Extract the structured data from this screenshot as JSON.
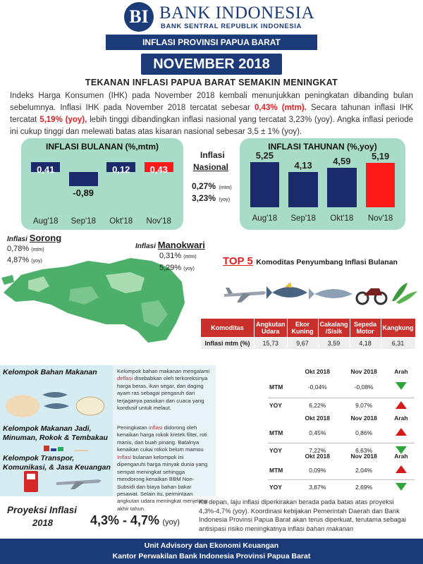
{
  "header": {
    "logo_letter": "BI",
    "bank_name": "BANK INDONESIA",
    "bank_subtitle": "BANK SENTRAL REPUBLIK INDONESIA",
    "region_band": "INFLASI PROVINSI PAPUA BARAT",
    "month": "NOVEMBER 2018"
  },
  "title": "TEKANAN INFLASI PAPUA BARAT SEMAKIN MENINGKAT",
  "intro": {
    "p1": "Indeks Harga Konsumen (IHK) pada November 2018 kembali menunjukkan peningkatan dibanding bulan sebelumnya. Inflasi IHK pada November 2018 tercatat sebesar ",
    "mtm": "0,43% (mtm).",
    "p2": " Secara tahunan inflasi IHK tercatat ",
    "yoy": "5,19% (yoy),",
    "p3": " lebih tinggi dibandingkan inflasi nasional yang tercatat 3,23% (yoy). Angka inflasi periode ini cukup tinggi dan melewati batas atas kisaran nasional sebesar 3,5 ± 1% (yoy)."
  },
  "national": {
    "title_1": "Inflasi",
    "title_2": "Nasional",
    "mtm_value": "0,27%",
    "mtm_unit": "(mtm)",
    "yoy_value": "3,23%",
    "yoy_unit": "(yoy)"
  },
  "chart_data": [
    {
      "type": "bar",
      "title": "INFLASI BULANAN (%,mtm)",
      "categories": [
        "Aug'18",
        "Sep'18",
        "Okt'18",
        "Nov'18"
      ],
      "values": [
        0.41,
        -0.89,
        0.12,
        0.43
      ],
      "labels": [
        "0,41",
        "-0,89",
        "0,12",
        "0,43"
      ],
      "highlight_index": 3,
      "colors": {
        "bar": "#1b2a6b",
        "highlight": "#ff1a1a"
      }
    },
    {
      "type": "bar",
      "title": "INFLASI TAHUNAN (%,yoy)",
      "categories": [
        "Aug'18",
        "Sep'18",
        "Okt'18",
        "Nov'18"
      ],
      "values": [
        5.25,
        4.13,
        4.59,
        5.19
      ],
      "labels": [
        "5,25",
        "4,13",
        "4,59",
        "5,19"
      ],
      "highlight_index": 3,
      "colors": {
        "bar": "#1b2a6b",
        "highlight": "#ff1a1a"
      }
    }
  ],
  "sorong": {
    "label_pre": "Inflasi ",
    "label_city": "Sorong",
    "mtm": "0,78%",
    "mtm_unit": "(mtm)",
    "yoy": "4,87%",
    "yoy_unit": "(yoy)"
  },
  "manokwari": {
    "label_pre": "Inflasi ",
    "label_city": "Manokwari",
    "mtm": "0,31%",
    "mtm_unit": "(mtm)",
    "yoy": "5,29%",
    "yoy_unit": "(yoy)"
  },
  "top5": {
    "title_top": "TOP 5",
    "title_rest": "Komoditas Penyumbang Inflasi Bulanan",
    "icons": [
      "airplane-icon",
      "tuna-fish-icon",
      "mackerel-fish-icon",
      "motorcycle-icon",
      "kangkung-icon"
    ],
    "header_first": "Komoditas",
    "row_label": "Inflasi mtm (%)",
    "columns": [
      {
        "name": "Angkutan Udara",
        "value": "15,73"
      },
      {
        "name": "Ekor Kuning",
        "value": "9,67"
      },
      {
        "name": "Cakalang /Sisik",
        "value": "3,59"
      },
      {
        "name": "Sepeda Motor",
        "value": "4,18"
      },
      {
        "name": "Kangkung",
        "value": "6,31"
      }
    ]
  },
  "groups": [
    {
      "name": "Kelompok Bahan Makanan",
      "desc_a": "Kelompok bahan makanan mengalami ",
      "desc_hl": "deflasi",
      "desc_b": " disebabkan oleh terkoreksinya harga beras, ikan segar, dan daging ayam ras sebagai pengaruh dari terjaganya pasokan dan cuaca yang kondusif untuk melaut.",
      "head": [
        "Okt 2018",
        "Nov 2018",
        "Arah"
      ],
      "rows": [
        {
          "label": "MTM",
          "okt": "-0,04%",
          "nov": "-0,08%",
          "arah": "down"
        },
        {
          "label": "YOY",
          "okt": "6,22%",
          "nov": "9,07%",
          "arah": "up"
        }
      ]
    },
    {
      "name": "Kelompok Makanan Jadi, Minuman, Rokok & Tembakau",
      "desc_a": "Peningkatan ",
      "desc_hl": "inflasi",
      "desc_b": " didorong oleh kenaikan harga rokok kretek filter, roti manis, dan buah pinang. Batalnya kenaikan cukai rokok belum mampu mengoreksi harga di tingkat pedagang.",
      "head": [
        "Okt 2018",
        "Nov 2018",
        "Arah"
      ],
      "rows": [
        {
          "label": "MTM",
          "okt": "0,45%",
          "nov": "0,86%",
          "arah": "up"
        },
        {
          "label": "YOY",
          "okt": "7,22%",
          "nov": "6,63%",
          "arah": "down"
        }
      ]
    },
    {
      "name": "Kelompok Transpor, Komunikasi, & Jasa Keuangan",
      "desc_a": "",
      "desc_hl": "Inflasi",
      "desc_b": " bulanan kelompok ini dipengaruhi harga minyak dunia yang sempat meningkat sehingga mendorong kenaikan BBM Non-Subsidi dan biaya bahan bakar pesawat. Selain itu, permintaan angkutan udara meningkat menjelang akhir tahun.",
      "head": [
        "Okt 2018",
        "Nov 2018",
        "Arah"
      ],
      "rows": [
        {
          "label": "MTM",
          "okt": "0,09%",
          "nov": "2,04%",
          "arah": "up"
        },
        {
          "label": "YOY",
          "okt": "3,87%",
          "nov": "2,69%",
          "arah": "down"
        }
      ]
    }
  ],
  "projection": {
    "title": "Proyeksi Inflasi",
    "year": "2018",
    "range": "4,3% - 4,7%",
    "unit": "(yoy)",
    "text_a": "Ke depan, laju inflasi diperkirakan berada pada batas atas proyeksi 4,3%-4,7% (yoy). Koordinasi kebijakan Pemerintah Daerah dan Bank Indonesia Provinsi Papua Barat akan terus diperkuat, terutama sebagai antisipasi risiko meningkatnya inflasi ",
    "text_b": "bahan makanan"
  },
  "footer": {
    "line1": "Unit Advisory dan Ekonomi Keuangan",
    "line2": "Kantor Perwakilan Bank Indonesia Provinsi Papua Barat"
  }
}
